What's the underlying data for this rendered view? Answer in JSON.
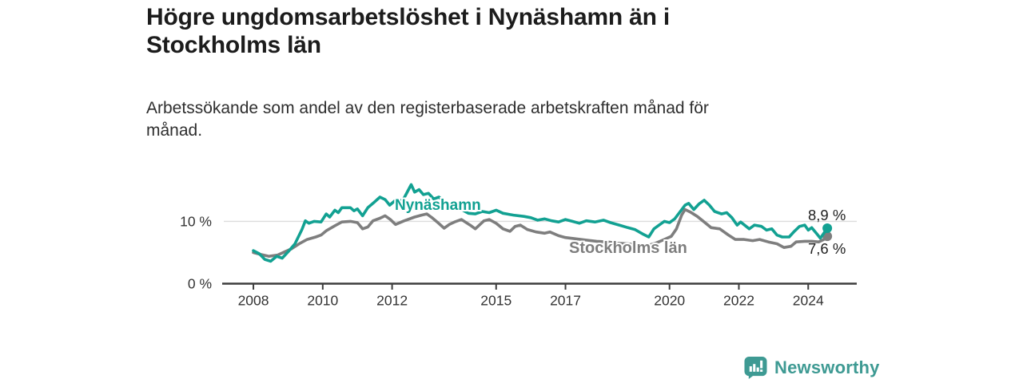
{
  "header": {
    "title": "Högre ungdomsarbetslöshet i Nynäshamn än i Stockholms län",
    "subtitle": "Arbetssökande som andel av den registerbaserade arbetskraften månad för månad."
  },
  "footer": {
    "brand": "Newsworthy",
    "brand_color": "#3e9a93",
    "icon": "bar-chart-speech-bubble-icon"
  },
  "colors": {
    "accent_teal": "#12a192",
    "neutral_gray": "#7e7e7e",
    "axis": "#3d3d3d",
    "gridline": "#dcdcdc",
    "text_dark": "#1f1f1f"
  },
  "chart_data": {
    "type": "line",
    "title": "Högre ungdomsarbetslöshet i Nynäshamn än i Stockholms län",
    "subtitle": "Arbetssökande som andel av den registerbaserade arbetskraften månad för månad.",
    "xlabel": "",
    "ylabel": "",
    "xlim": [
      2007.1,
      2025.4
    ],
    "ylim": [
      0,
      18
    ],
    "grid": "single-horizontal-gridline-at-10",
    "legend_position": "inline-series-labels",
    "x_ticks": [
      2008,
      2010,
      2012,
      2015,
      2017,
      2020,
      2022,
      2024
    ],
    "x_tick_labels": [
      "2008",
      "2010",
      "2012",
      "2015",
      "2017",
      "2020",
      "2022",
      "2024"
    ],
    "y_ticks": [
      0,
      10
    ],
    "y_tick_labels": [
      "0 %",
      "10 %"
    ],
    "series": [
      {
        "name": "Stockholms län",
        "color": "#7e7e7e",
        "end_value": 7.6,
        "end_label": "7,6 %",
        "points": [
          [
            2008.0,
            5.0
          ],
          [
            2008.2,
            4.7
          ],
          [
            2008.45,
            4.4
          ],
          [
            2008.7,
            4.6
          ],
          [
            2008.9,
            5.1
          ],
          [
            2009.1,
            5.6
          ],
          [
            2009.35,
            6.5
          ],
          [
            2009.55,
            7.1
          ],
          [
            2009.8,
            7.5
          ],
          [
            2009.95,
            7.8
          ],
          [
            2010.1,
            8.5
          ],
          [
            2010.35,
            9.3
          ],
          [
            2010.55,
            9.9
          ],
          [
            2010.8,
            10.0
          ],
          [
            2011.0,
            9.8
          ],
          [
            2011.15,
            8.8
          ],
          [
            2011.3,
            9.1
          ],
          [
            2011.45,
            10.1
          ],
          [
            2011.65,
            10.5
          ],
          [
            2011.8,
            10.9
          ],
          [
            2011.95,
            10.3
          ],
          [
            2012.1,
            9.5
          ],
          [
            2012.35,
            10.1
          ],
          [
            2012.65,
            10.7
          ],
          [
            2012.85,
            11.0
          ],
          [
            2013.0,
            11.2
          ],
          [
            2013.15,
            10.6
          ],
          [
            2013.3,
            9.9
          ],
          [
            2013.5,
            8.9
          ],
          [
            2013.65,
            9.5
          ],
          [
            2013.8,
            9.9
          ],
          [
            2014.0,
            10.3
          ],
          [
            2014.25,
            9.4
          ],
          [
            2014.4,
            8.8
          ],
          [
            2014.65,
            10.1
          ],
          [
            2014.8,
            10.3
          ],
          [
            2015.0,
            9.7
          ],
          [
            2015.2,
            8.8
          ],
          [
            2015.4,
            8.4
          ],
          [
            2015.55,
            9.2
          ],
          [
            2015.7,
            9.4
          ],
          [
            2015.9,
            8.7
          ],
          [
            2016.15,
            8.3
          ],
          [
            2016.4,
            8.1
          ],
          [
            2016.55,
            8.3
          ],
          [
            2016.8,
            7.7
          ],
          [
            2017.0,
            7.4
          ],
          [
            2017.3,
            7.2
          ],
          [
            2017.6,
            7.0
          ],
          [
            2017.9,
            6.8
          ],
          [
            2018.2,
            6.7
          ],
          [
            2018.5,
            6.5
          ],
          [
            2018.8,
            6.4
          ],
          [
            2019.1,
            6.2
          ],
          [
            2019.35,
            6.1
          ],
          [
            2019.6,
            6.5
          ],
          [
            2019.85,
            7.1
          ],
          [
            2020.05,
            7.6
          ],
          [
            2020.2,
            8.8
          ],
          [
            2020.35,
            11.0
          ],
          [
            2020.45,
            11.9
          ],
          [
            2020.6,
            11.5
          ],
          [
            2020.8,
            10.8
          ],
          [
            2021.0,
            9.9
          ],
          [
            2021.2,
            9.0
          ],
          [
            2021.45,
            8.8
          ],
          [
            2021.7,
            7.8
          ],
          [
            2021.9,
            7.1
          ],
          [
            2022.15,
            7.1
          ],
          [
            2022.4,
            6.9
          ],
          [
            2022.6,
            7.1
          ],
          [
            2022.85,
            6.7
          ],
          [
            2023.1,
            6.4
          ],
          [
            2023.3,
            5.8
          ],
          [
            2023.5,
            6.0
          ],
          [
            2023.65,
            6.7
          ],
          [
            2023.9,
            6.8
          ],
          [
            2024.1,
            6.8
          ],
          [
            2024.3,
            6.7
          ],
          [
            2024.45,
            7.1
          ],
          [
            2024.55,
            7.6
          ]
        ]
      },
      {
        "name": "Nynäshamn",
        "color": "#12a192",
        "end_value": 8.9,
        "end_label": "8,9 %",
        "points": [
          [
            2008.0,
            5.3
          ],
          [
            2008.17,
            4.8
          ],
          [
            2008.33,
            3.9
          ],
          [
            2008.5,
            3.6
          ],
          [
            2008.67,
            4.4
          ],
          [
            2008.83,
            4.1
          ],
          [
            2009.0,
            5.1
          ],
          [
            2009.2,
            6.4
          ],
          [
            2009.4,
            8.7
          ],
          [
            2009.5,
            10.1
          ],
          [
            2009.6,
            9.7
          ],
          [
            2009.75,
            10.0
          ],
          [
            2009.95,
            9.9
          ],
          [
            2010.1,
            11.2
          ],
          [
            2010.2,
            10.7
          ],
          [
            2010.35,
            11.8
          ],
          [
            2010.45,
            11.4
          ],
          [
            2010.55,
            12.2
          ],
          [
            2010.8,
            12.2
          ],
          [
            2010.9,
            11.7
          ],
          [
            2011.0,
            12.0
          ],
          [
            2011.15,
            10.9
          ],
          [
            2011.3,
            12.2
          ],
          [
            2011.45,
            12.9
          ],
          [
            2011.65,
            13.9
          ],
          [
            2011.8,
            13.5
          ],
          [
            2011.93,
            12.6
          ],
          [
            2012.1,
            13.4
          ],
          [
            2012.2,
            13.0
          ],
          [
            2012.35,
            13.8
          ],
          [
            2012.55,
            15.9
          ],
          [
            2012.65,
            14.7
          ],
          [
            2012.78,
            15.1
          ],
          [
            2012.9,
            14.3
          ],
          [
            2013.05,
            14.5
          ],
          [
            2013.2,
            13.6
          ],
          [
            2013.35,
            13.9
          ],
          [
            2013.6,
            12.8
          ],
          [
            2013.8,
            12.3
          ],
          [
            2014.0,
            11.9
          ],
          [
            2014.2,
            11.3
          ],
          [
            2014.4,
            11.2
          ],
          [
            2014.6,
            11.6
          ],
          [
            2014.8,
            11.4
          ],
          [
            2015.0,
            11.8
          ],
          [
            2015.2,
            11.3
          ],
          [
            2015.5,
            11.0
          ],
          [
            2015.8,
            10.8
          ],
          [
            2016.0,
            10.6
          ],
          [
            2016.2,
            10.2
          ],
          [
            2016.4,
            10.4
          ],
          [
            2016.6,
            10.1
          ],
          [
            2016.8,
            9.9
          ],
          [
            2017.0,
            10.3
          ],
          [
            2017.2,
            10.0
          ],
          [
            2017.4,
            9.7
          ],
          [
            2017.6,
            10.1
          ],
          [
            2017.85,
            9.9
          ],
          [
            2018.1,
            10.2
          ],
          [
            2018.3,
            9.8
          ],
          [
            2018.55,
            9.4
          ],
          [
            2018.8,
            9.0
          ],
          [
            2019.0,
            8.7
          ],
          [
            2019.25,
            7.9
          ],
          [
            2019.4,
            7.5
          ],
          [
            2019.55,
            8.8
          ],
          [
            2019.7,
            9.4
          ],
          [
            2019.85,
            10.0
          ],
          [
            2020.0,
            9.8
          ],
          [
            2020.15,
            10.4
          ],
          [
            2020.3,
            11.5
          ],
          [
            2020.45,
            12.6
          ],
          [
            2020.55,
            12.9
          ],
          [
            2020.7,
            11.9
          ],
          [
            2020.85,
            12.8
          ],
          [
            2021.0,
            13.4
          ],
          [
            2021.15,
            12.6
          ],
          [
            2021.3,
            11.6
          ],
          [
            2021.5,
            11.2
          ],
          [
            2021.65,
            11.4
          ],
          [
            2021.8,
            10.6
          ],
          [
            2021.95,
            9.4
          ],
          [
            2022.05,
            9.9
          ],
          [
            2022.3,
            8.8
          ],
          [
            2022.45,
            9.4
          ],
          [
            2022.65,
            9.2
          ],
          [
            2022.8,
            8.6
          ],
          [
            2022.95,
            8.8
          ],
          [
            2023.1,
            7.8
          ],
          [
            2023.25,
            7.5
          ],
          [
            2023.45,
            7.5
          ],
          [
            2023.6,
            8.4
          ],
          [
            2023.75,
            9.2
          ],
          [
            2023.9,
            9.4
          ],
          [
            2024.0,
            8.6
          ],
          [
            2024.1,
            9.0
          ],
          [
            2024.25,
            8.0
          ],
          [
            2024.35,
            7.3
          ],
          [
            2024.45,
            8.1
          ],
          [
            2024.55,
            8.9
          ]
        ]
      }
    ]
  }
}
